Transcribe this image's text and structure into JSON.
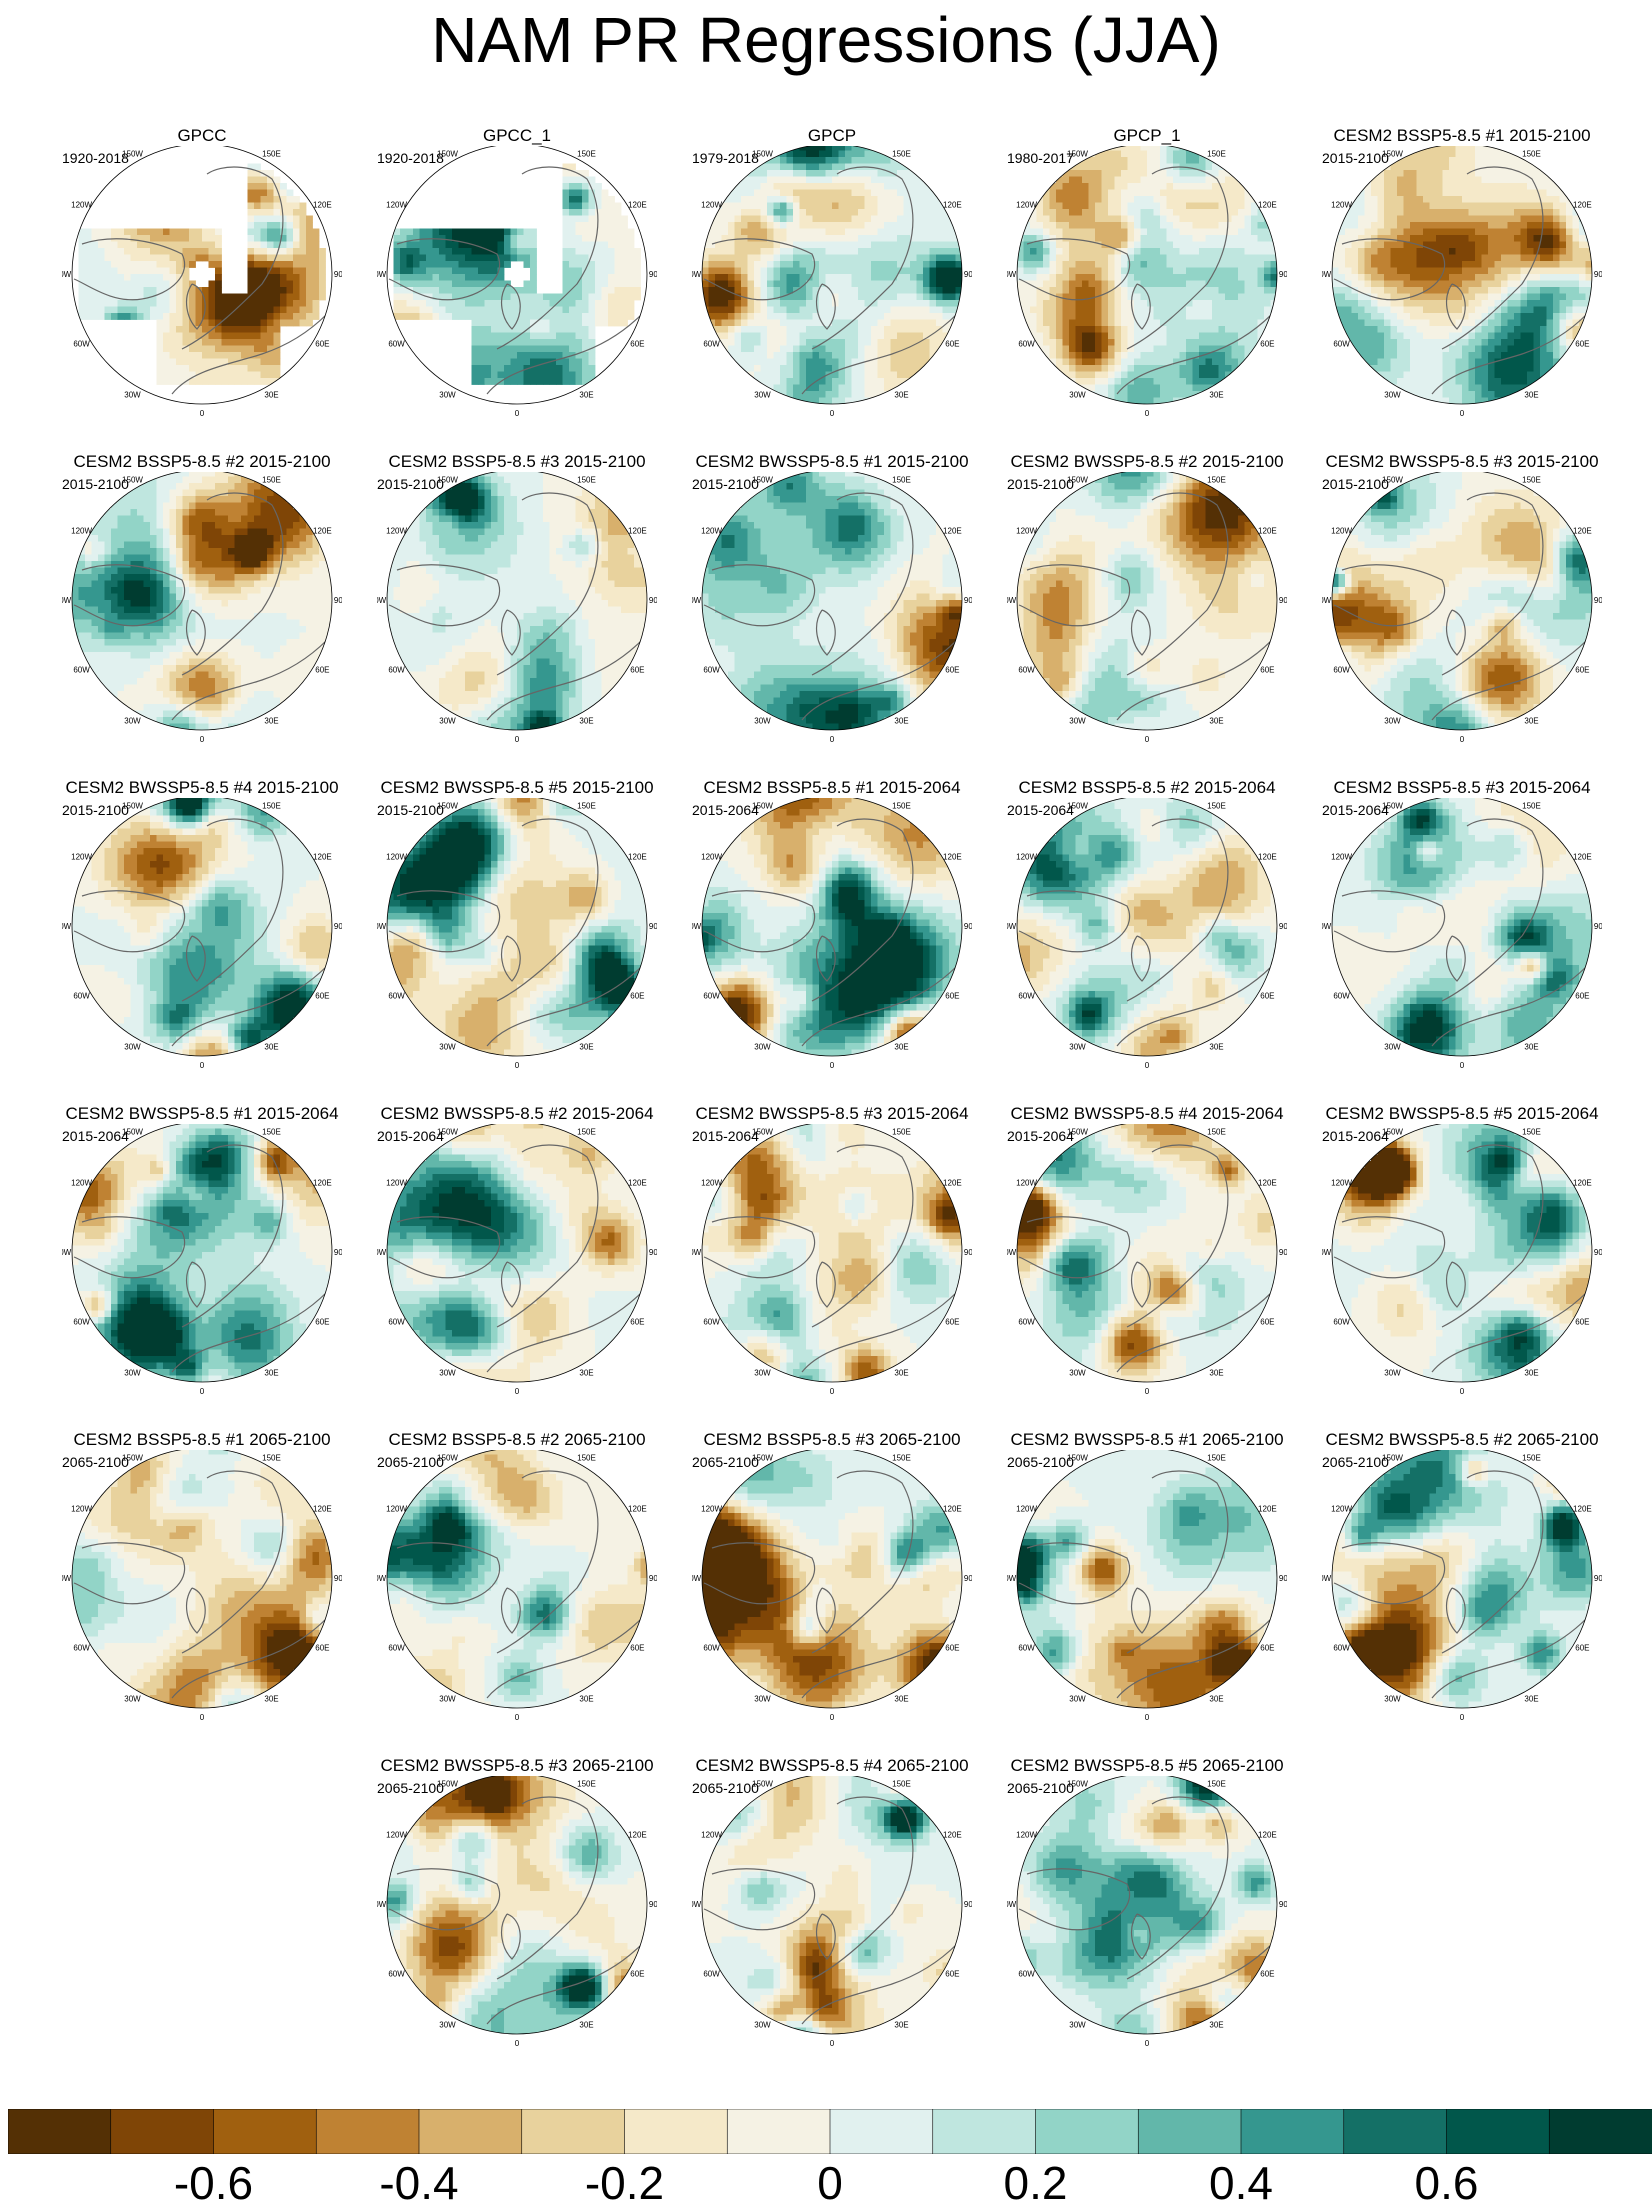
{
  "title": "NAM PR Regressions (JJA)",
  "longitude_labels": [
    "180",
    "150E",
    "120E",
    "90E",
    "60E",
    "30E",
    "0",
    "30W",
    "60W",
    "90W",
    "120W",
    "150W"
  ],
  "chart_data": {
    "type": "heatmap",
    "projection": "north polar stereographic",
    "colormap_colors": [
      "#543005",
      "#7f4506",
      "#a0600f",
      "#bf8233",
      "#d8b06c",
      "#e8d29d",
      "#f5e9c9",
      "#f5f2e4",
      "#e1f1ef",
      "#bfe6df",
      "#92d4c7",
      "#62b7aa",
      "#35978f",
      "#147066",
      "#01574b",
      "#003c30"
    ],
    "colorbar_ticks": [
      "-0.6",
      "-0.4",
      "-0.2",
      "0",
      "0.2",
      "0.4",
      "0.6"
    ],
    "colorbar_range": [
      -0.8,
      0.8
    ],
    "panels": [
      {
        "title": "GPCC",
        "period": "1920-2018",
        "coverage": "land"
      },
      {
        "title": "GPCC_1",
        "period": "1920-2018",
        "coverage": "land"
      },
      {
        "title": "GPCP",
        "period": "1979-2018",
        "coverage": "global"
      },
      {
        "title": "GPCP_1",
        "period": "1980-2017",
        "coverage": "global"
      },
      {
        "title": "CESM2 BSSP5-8.5 #1 2015-2100",
        "period": "2015-2100",
        "coverage": "global"
      },
      {
        "title": "CESM2 BSSP5-8.5 #2 2015-2100",
        "period": "2015-2100",
        "coverage": "global"
      },
      {
        "title": "CESM2 BSSP5-8.5 #3 2015-2100",
        "period": "2015-2100",
        "coverage": "global"
      },
      {
        "title": "CESM2 BWSSP5-8.5 #1 2015-2100",
        "period": "2015-2100",
        "coverage": "global"
      },
      {
        "title": "CESM2 BWSSP5-8.5 #2 2015-2100",
        "period": "2015-2100",
        "coverage": "global"
      },
      {
        "title": "CESM2 BWSSP5-8.5 #3 2015-2100",
        "period": "2015-2100",
        "coverage": "global"
      },
      {
        "title": "CESM2 BWSSP5-8.5 #4 2015-2100",
        "period": "2015-2100",
        "coverage": "global"
      },
      {
        "title": "CESM2 BWSSP5-8.5 #5 2015-2100",
        "period": "2015-2100",
        "coverage": "global"
      },
      {
        "title": "CESM2 BSSP5-8.5 #1 2015-2064",
        "period": "2015-2064",
        "coverage": "global"
      },
      {
        "title": "CESM2 BSSP5-8.5 #2 2015-2064",
        "period": "2015-2064",
        "coverage": "global"
      },
      {
        "title": "CESM2 BSSP5-8.5 #3 2015-2064",
        "period": "2015-2064",
        "coverage": "global"
      },
      {
        "title": "CESM2 BWSSP5-8.5 #1 2015-2064",
        "period": "2015-2064",
        "coverage": "global"
      },
      {
        "title": "CESM2 BWSSP5-8.5 #2 2015-2064",
        "period": "2015-2064",
        "coverage": "global"
      },
      {
        "title": "CESM2 BWSSP5-8.5 #3 2015-2064",
        "period": "2015-2064",
        "coverage": "global"
      },
      {
        "title": "CESM2 BWSSP5-8.5 #4 2015-2064",
        "period": "2015-2064",
        "coverage": "global"
      },
      {
        "title": "CESM2 BWSSP5-8.5 #5 2015-2064",
        "period": "2015-2064",
        "coverage": "global"
      },
      {
        "title": "CESM2 BSSP5-8.5 #1 2065-2100",
        "period": "2065-2100",
        "coverage": "global"
      },
      {
        "title": "CESM2 BSSP5-8.5 #2 2065-2100",
        "period": "2065-2100",
        "coverage": "global"
      },
      {
        "title": "CESM2 BSSP5-8.5 #3 2065-2100",
        "period": "2065-2100",
        "coverage": "global"
      },
      {
        "title": "CESM2 BWSSP5-8.5 #1 2065-2100",
        "period": "2065-2100",
        "coverage": "global"
      },
      {
        "title": "CESM2 BWSSP5-8.5 #2 2065-2100",
        "period": "2065-2100",
        "coverage": "global"
      },
      {
        "title": "CESM2 BWSSP5-8.5 #3 2065-2100",
        "period": "2065-2100",
        "coverage": "global"
      },
      {
        "title": "CESM2 BWSSP5-8.5 #4 2065-2100",
        "period": "2065-2100",
        "coverage": "global"
      },
      {
        "title": "CESM2 BWSSP5-8.5 #5 2065-2100",
        "period": "2065-2100",
        "coverage": "global"
      }
    ]
  }
}
